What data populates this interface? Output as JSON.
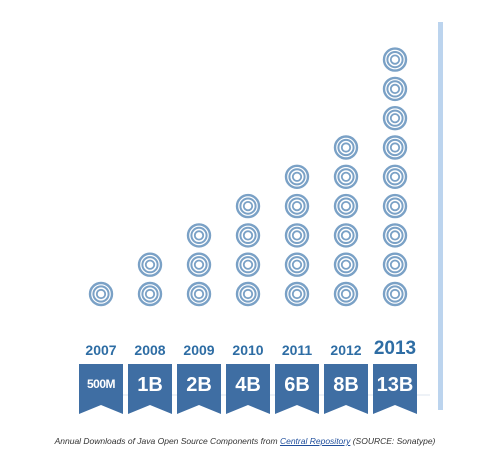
{
  "chart_data": {
    "type": "bar",
    "categories": [
      "2007",
      "2008",
      "2009",
      "2010",
      "2011",
      "2012",
      "2013"
    ],
    "values": [
      0.5,
      1,
      2,
      4,
      6,
      8,
      13
    ],
    "value_labels": [
      "500M",
      "1B",
      "2B",
      "4B",
      "6B",
      "8B",
      "13B"
    ],
    "stacked_icons": [
      1,
      2,
      3,
      4,
      5,
      6,
      9
    ],
    "highlighted_category": "2013"
  },
  "caption": {
    "prefix": "Annual Downloads of Java Open Source Components from ",
    "link": "Central Repository",
    "suffix": " (SOURCE: Sonatype)"
  },
  "colors": {
    "accent": "#2e6da4",
    "ribbon": "#3f6ea3",
    "icon": "#7aa1c6",
    "divider": "#bcd4ee"
  }
}
